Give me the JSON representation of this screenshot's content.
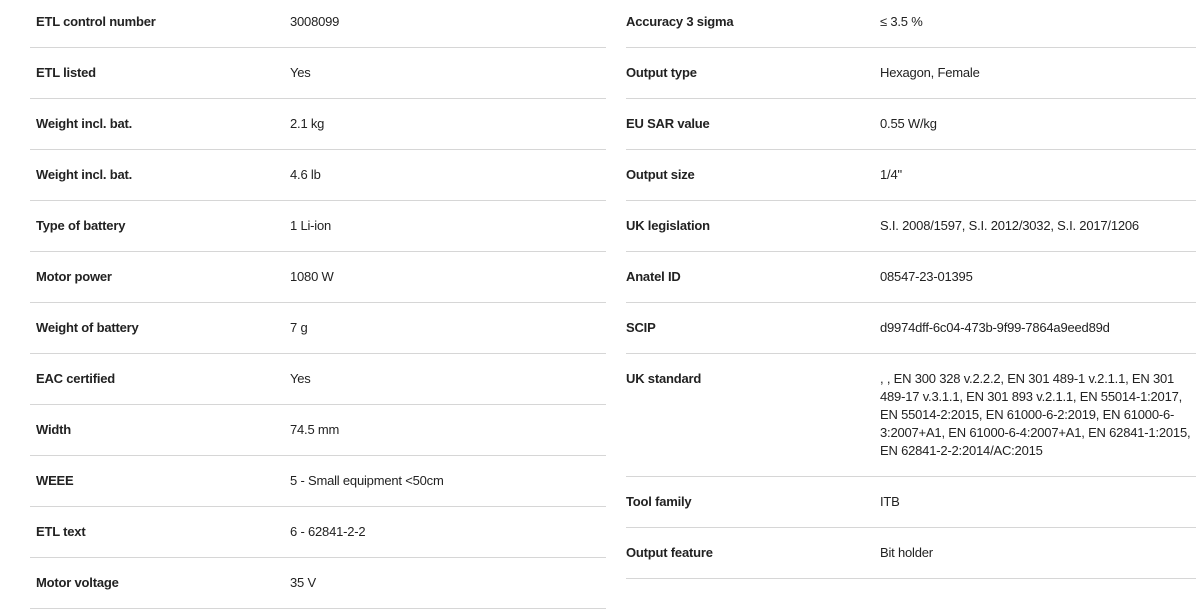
{
  "left": [
    {
      "label": "ETL control number",
      "value": "3008099"
    },
    {
      "label": "ETL listed",
      "value": "Yes"
    },
    {
      "label": "Weight incl. bat.",
      "value": "2.1 kg"
    },
    {
      "label": "Weight incl. bat.",
      "value": "4.6 lb"
    },
    {
      "label": "Type of battery",
      "value": "1 Li-ion"
    },
    {
      "label": "Motor power",
      "value": "1080 W"
    },
    {
      "label": "Weight of battery",
      "value": "7 g"
    },
    {
      "label": "EAC certified",
      "value": "Yes"
    },
    {
      "label": "Width",
      "value": "74.5 mm"
    },
    {
      "label": "WEEE",
      "value": "5 - Small equipment <50cm"
    },
    {
      "label": "ETL text",
      "value": "6 - 62841-2-2"
    },
    {
      "label": "Motor voltage",
      "value": "35 V"
    }
  ],
  "right": [
    {
      "label": "Accuracy 3 sigma",
      "value": "≤ 3.5 %"
    },
    {
      "label": "Output type",
      "value": "Hexagon, Female"
    },
    {
      "label": "EU SAR value",
      "value": "0.55 W/kg"
    },
    {
      "label": "Output size",
      "value": "1/4\""
    },
    {
      "label": "UK legislation",
      "value": "S.I. 2008/1597, S.I. 2012/3032, S.I. 2017/1206"
    },
    {
      "label": "Anatel ID",
      "value": "08547-23-01395"
    },
    {
      "label": "SCIP",
      "value": "d9974dff-6c04-473b-9f99-7864a9eed89d"
    },
    {
      "label": "UK standard",
      "value": ", , EN 300 328 v.2.2.2, EN 301 489-1 v.2.1.1, EN 301 489-17 v.3.1.1, EN 301 893 v.2.1.1, EN 55014-1:2017, EN 55014-2:2015, EN 61000-6-2:2019, EN 61000-6-3:2007+A1, EN 61000-6-4:2007+A1, EN 62841-1:2015, EN 62841-2-2:2014/AC:2015"
    },
    {
      "label": "Tool family",
      "value": "ITB"
    },
    {
      "label": "Output feature",
      "value": "Bit holder"
    }
  ]
}
